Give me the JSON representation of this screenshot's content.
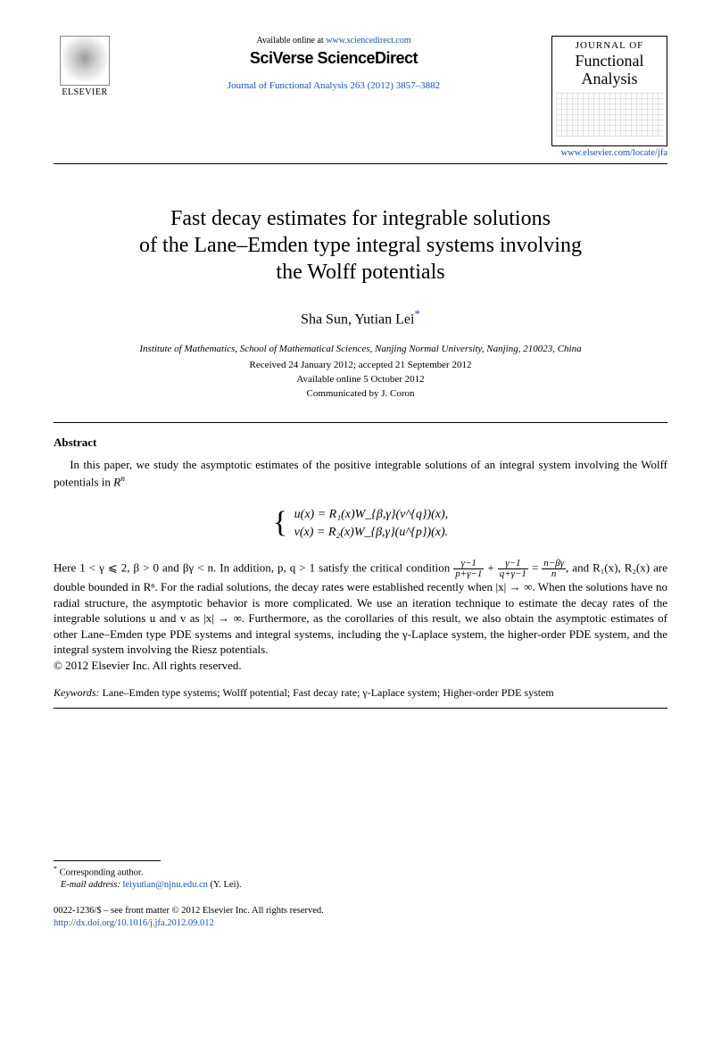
{
  "header": {
    "publisher_label": "ELSEVIER",
    "available_prefix": "Available online at ",
    "available_url": "www.sciencedirect.com",
    "platform": "SciVerse ScienceDirect",
    "journal_ref": "Journal of Functional Analysis 263 (2012) 3857–3882",
    "journal_box_top": "JOURNAL OF",
    "journal_box_name1": "Functional",
    "journal_box_name2": "Analysis",
    "locate_url": "www.elsevier.com/locate/jfa"
  },
  "title": {
    "l1": "Fast decay estimates for integrable solutions",
    "l2": "of the Lane–Emden type integral systems involving",
    "l3": "the Wolff potentials"
  },
  "authors": {
    "a1": "Sha Sun",
    "sep": ", ",
    "a2": "Yutian Lei",
    "corr_mark": "*"
  },
  "affiliation": "Institute of Mathematics, School of Mathematical Sciences, Nanjing Normal University, Nanjing, 210023, China",
  "dates": {
    "received_accepted": "Received 24 January 2012; accepted 21 September 2012",
    "online": "Available online 5 October 2012",
    "communicated": "Communicated by J. Coron"
  },
  "abstract": {
    "heading": "Abstract",
    "p1_a": "In this paper, we study the asymptotic estimates of the positive integrable solutions of an integral system involving the Wolff potentials in ",
    "p1_b": "R",
    "p1_c": "n",
    "eq1": "u(x) = R₁(x)W_{β,γ}(v^{q})(x),",
    "eq2": "v(x) = R₂(x)W_{β,γ}(u^{p})(x).",
    "p2_a": "Here 1 < γ ⩽ 2, β > 0 and βγ < n. In addition, p, q > 1 satisfy the critical condition ",
    "frac1_num": "γ−1",
    "frac1_den": "p+γ−1",
    "p2_plus": " + ",
    "frac2_num": "γ−1",
    "frac2_den": "q+γ−1",
    "p2_eq": " = ",
    "frac3_num": "n−βγ",
    "frac3_den": "n",
    "p2_b": ", and R₁(x), R₂(x) are double bounded in Rⁿ. For the radial solutions, the decay rates were established recently when |x| → ∞. When the solutions have no radial structure, the asymptotic behavior is more complicated. We use an iteration technique to estimate the decay rates of the integrable solutions u and v as |x| → ∞. Furthermore, as the corollaries of this result, we also obtain the asymptotic estimates of other Lane–Emden type PDE systems and integral systems, including the γ-Laplace system, the higher-order PDE system, and the integral system involving the Riesz potentials.",
    "copyright": "© 2012 Elsevier Inc. All rights reserved."
  },
  "keywords": {
    "label": "Keywords: ",
    "text": "Lane–Emden type systems; Wolff potential; Fast decay rate; γ-Laplace system; Higher-order PDE system"
  },
  "footnote": {
    "corr_label": "Corresponding author.",
    "email_label": "E-mail address: ",
    "email": "leiyutian@njnu.edu.cn",
    "email_who": " (Y. Lei)."
  },
  "footer": {
    "issn_line": "0022-1236/$ – see front matter © 2012 Elsevier Inc. All rights reserved.",
    "doi": "http://dx.doi.org/10.1016/j.jfa.2012.09.012"
  },
  "colors": {
    "link": "#1a4fbf",
    "text": "#000000",
    "bg": "#ffffff"
  }
}
